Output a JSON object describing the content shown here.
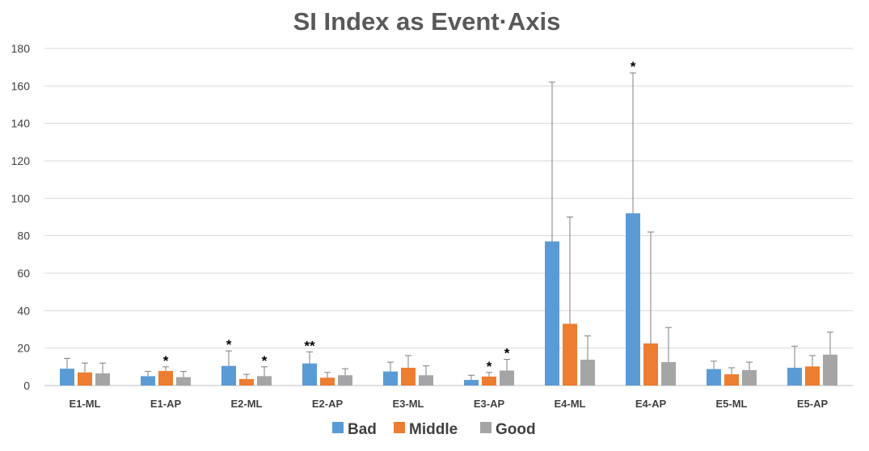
{
  "chart_data": {
    "type": "bar",
    "title": "SI Index as Event·Axis",
    "xlabel": "",
    "ylabel": "",
    "ylim": [
      0,
      180
    ],
    "yticks": [
      "0",
      "20",
      "40",
      "60",
      "80",
      "100",
      "120",
      "140",
      "160",
      "180"
    ],
    "grid": true,
    "legend_position": "bottom",
    "categories": [
      "E1-ML",
      "E1-AP",
      "E2-ML",
      "E2-AP",
      "E3-ML",
      "E3-AP",
      "E4-ML",
      "E4-AP",
      "E5-ML",
      "E5-AP"
    ],
    "series": [
      {
        "name": "Bad",
        "color": "#5B9BD5",
        "values": [
          9,
          5,
          10.5,
          11.8,
          7.5,
          3,
          77,
          92,
          8.8,
          9.5
        ],
        "error_upper": [
          14.5,
          7.5,
          18.5,
          18,
          12.5,
          5.5,
          162,
          167,
          13,
          21
        ],
        "significance": [
          "",
          "",
          "*",
          "**",
          "",
          "",
          "",
          "*",
          "",
          ""
        ]
      },
      {
        "name": "Middle",
        "color": "#ED7D31",
        "values": [
          7,
          7.8,
          3.5,
          4.2,
          9.5,
          4.8,
          33,
          22.5,
          6,
          10.2
        ],
        "error_upper": [
          12,
          10,
          6,
          7,
          16,
          7,
          90,
          82,
          9.5,
          16
        ],
        "significance": [
          "",
          "*",
          "",
          "",
          "",
          "*",
          "",
          "",
          "",
          ""
        ]
      },
      {
        "name": "Good",
        "color": "#A5A5A5",
        "values": [
          6.5,
          4.5,
          5,
          5.5,
          5.5,
          8,
          13.8,
          12.5,
          8.2,
          16.5
        ],
        "error_upper": [
          12,
          7.5,
          10,
          9,
          10.5,
          14,
          26.5,
          31,
          12.5,
          28.5
        ],
        "significance": [
          "",
          "",
          "*",
          "",
          "",
          "*",
          "",
          "",
          "",
          ""
        ]
      }
    ]
  }
}
